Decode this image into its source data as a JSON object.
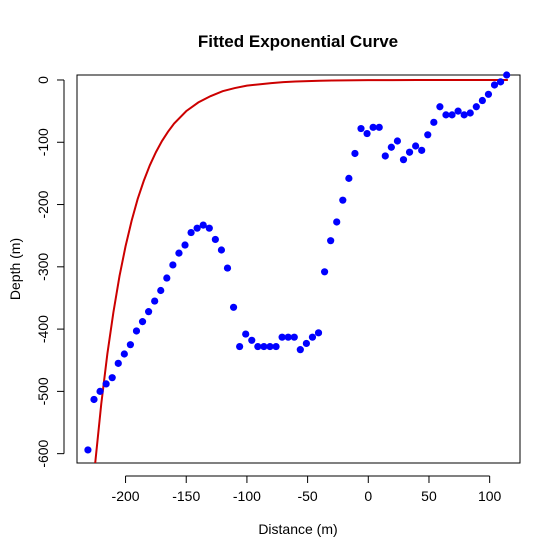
{
  "chart_data": {
    "type": "scatter",
    "title": "Fitted Exponential Curve",
    "xlabel": "Distance (m)",
    "ylabel": "Depth (m)",
    "xlim": [
      -240,
      125
    ],
    "ylim": [
      -615,
      8
    ],
    "x_ticks": [
      -200,
      -150,
      -100,
      -50,
      0,
      50,
      100
    ],
    "y_ticks": [
      0,
      -100,
      -200,
      -300,
      -400,
      -500,
      -600
    ],
    "grid": false,
    "legend": "none",
    "colors": {
      "points": "#0000ff",
      "curve": "#cc0000"
    },
    "series": [
      {
        "type": "scatter",
        "x": [
          -231,
          -226,
          -221,
          -216,
          -211,
          -206,
          -201,
          -196,
          -191,
          -186,
          -181,
          -176,
          -171,
          -166,
          -161,
          -156,
          -151,
          -146,
          -141,
          -136,
          -131,
          -126,
          -121,
          -116,
          -111,
          -106,
          -101,
          -96,
          -91,
          -86,
          -81,
          -76,
          -71,
          -66,
          -61,
          -56,
          -51,
          -46,
          -41,
          -36,
          -31,
          -26,
          -21,
          -16,
          -11,
          -6,
          -1,
          4,
          9,
          14,
          19,
          24,
          29,
          34,
          39,
          44,
          49,
          54,
          59,
          64,
          69,
          74,
          79,
          84,
          89,
          94,
          99,
          104,
          109,
          114
        ],
        "y": [
          -594,
          -513,
          -500,
          -488,
          -478,
          -455,
          -440,
          -425,
          -403,
          -388,
          -372,
          -355,
          -338,
          -318,
          -297,
          -278,
          -265,
          -245,
          -238,
          -233,
          -238,
          -256,
          -273,
          -302,
          -365,
          -428,
          -408,
          -418,
          -428,
          -428,
          -428,
          -428,
          -413,
          -413,
          -413,
          -433,
          -423,
          -413,
          -406,
          -308,
          -258,
          -228,
          -193,
          -158,
          -118,
          -78,
          -86,
          -76,
          -76,
          -122,
          -108,
          -98,
          -128,
          -116,
          -106,
          -113,
          -88,
          -68,
          -43,
          -56,
          -56,
          -50,
          -56,
          -53,
          -43,
          -33,
          -23,
          -8,
          -3,
          8
        ]
      },
      {
        "type": "line",
        "x": [
          -225,
          -220,
          -215,
          -210,
          -205,
          -200,
          -195,
          -190,
          -185,
          -180,
          -175,
          -170,
          -165,
          -160,
          -150,
          -140,
          -130,
          -120,
          -110,
          -100,
          -90,
          -80,
          -70,
          -60,
          -50,
          -40,
          -30,
          -20,
          -10,
          0,
          20,
          40,
          60,
          80,
          100,
          115
        ],
        "y": [
          -615,
          -520,
          -440,
          -373,
          -315,
          -267,
          -226,
          -191,
          -162,
          -137,
          -116,
          -98,
          -83,
          -70,
          -50,
          -36,
          -26,
          -18,
          -13,
          -9,
          -7,
          -5,
          -3.5,
          -2.5,
          -1.8,
          -1.3,
          -0.9,
          -0.6,
          -0.4,
          -0.3,
          -0.15,
          -0.08,
          -0.04,
          -0.02,
          -0.01,
          0
        ]
      }
    ]
  }
}
